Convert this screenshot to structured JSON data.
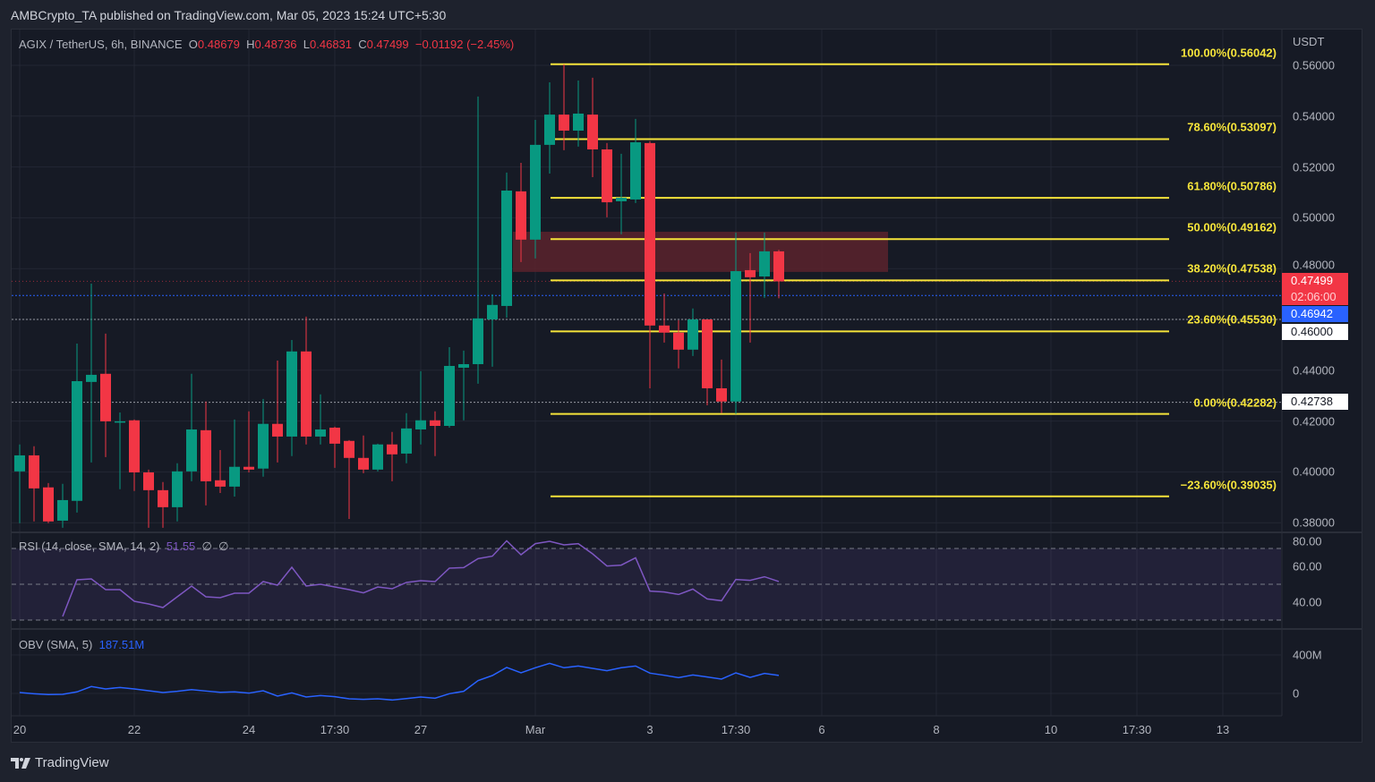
{
  "header": {
    "publish_line": "AMBCrypto_TA published on TradingView.com, Mar 05, 2023 15:24 UTC+5:30",
    "symbol_line": "AGIX / TetherUS, 6h, BINANCE",
    "o_label": "O",
    "o_value": "0.48679",
    "h_label": "H",
    "h_value": "0.48736",
    "l_label": "L",
    "l_value": "0.46831",
    "c_label": "C",
    "c_value": "0.47499",
    "change": "−0.01192 (−2.45%)"
  },
  "colors": {
    "up": "#089981",
    "down": "#f23645",
    "fib": "#f5e43a",
    "zone": "#5a232d",
    "rsi": "#7e57c2",
    "obv": "#2962ff",
    "bg": "#161a25"
  },
  "price_axis": {
    "currency": "USDT",
    "ticks": [
      "0.56000",
      "0.54000",
      "0.52000",
      "0.50000",
      "0.48000",
      "0.46000",
      "0.44000",
      "0.42000",
      "0.40000",
      "0.38000"
    ],
    "tick_values": [
      0.56,
      0.54,
      0.52,
      0.5,
      0.48,
      0.46,
      0.44,
      0.42,
      0.4,
      0.38
    ],
    "badges": [
      {
        "label": "0.47499",
        "sub": "02:06:00",
        "value": 0.47499,
        "kind": "last-price"
      },
      {
        "label": "0.46942",
        "value": 0.46942,
        "kind": "blue-line"
      },
      {
        "label": "0.46000",
        "value": 0.46,
        "kind": "white-line"
      },
      {
        "label": "0.42738",
        "value": 0.42738,
        "kind": "white-line"
      }
    ]
  },
  "time_axis": {
    "labels": [
      {
        "text": "20",
        "bar": 0
      },
      {
        "text": "22",
        "bar": 8
      },
      {
        "text": "24",
        "bar": 16
      },
      {
        "text": "17:30",
        "bar": 22
      },
      {
        "text": "27",
        "bar": 28
      },
      {
        "text": "Mar",
        "bar": 36
      },
      {
        "text": "3",
        "bar": 44
      },
      {
        "text": "17:30",
        "bar": 50
      },
      {
        "text": "6",
        "bar": 56
      },
      {
        "text": "8",
        "bar": 64
      },
      {
        "text": "10",
        "bar": 72
      },
      {
        "text": "17:30",
        "bar": 78
      },
      {
        "text": "13",
        "bar": 84
      }
    ]
  },
  "fib_levels": [
    {
      "label": "100.00%(0.56042)",
      "value": 0.56042
    },
    {
      "label": "78.60%(0.53097)",
      "value": 0.53097
    },
    {
      "label": "61.80%(0.50786)",
      "value": 0.50786
    },
    {
      "label": "50.00%(0.49162)",
      "value": 0.49162
    },
    {
      "label": "38.20%(0.47538)",
      "value": 0.47538
    },
    {
      "label": "23.60%(0.45530)",
      "value": 0.4553
    },
    {
      "label": "0.00%(0.42282)",
      "value": 0.42282
    },
    {
      "label": "−23.60%(0.39035)",
      "value": 0.39035
    }
  ],
  "zone": {
    "top": 0.4945,
    "bottom": 0.4787,
    "from_bar": 35,
    "to_bar": 60
  },
  "rsi": {
    "legend": "RSI (14, close, SMA, 14, 2)",
    "value": "51.55",
    "extra1": "∅",
    "extra2": "∅",
    "axis_labels": [
      "80.00",
      "60.00",
      "40.00"
    ],
    "axis_values": [
      80,
      60,
      40
    ],
    "upper_band": 70,
    "middle": 50,
    "lower_band": 30
  },
  "obv": {
    "legend": "OBV (SMA, 5)",
    "value": "187.51M",
    "axis_labels": [
      "400M",
      "0"
    ],
    "axis_values": [
      400,
      0
    ]
  },
  "branding": {
    "logo_text": "TradingView"
  },
  "chart_data": {
    "type": "candlestick",
    "title": "AGIX / TetherUS, 6h, BINANCE",
    "ylabel": "USDT",
    "ylim": [
      0.38,
      0.56
    ],
    "ohlc": [
      [
        0.4002,
        0.4108,
        0.3798,
        0.4065
      ],
      [
        0.4065,
        0.4101,
        0.3805,
        0.3935
      ],
      [
        0.3939,
        0.3956,
        0.3798,
        0.3805
      ],
      [
        0.3808,
        0.3953,
        0.378,
        0.3889
      ],
      [
        0.3886,
        0.4505,
        0.384,
        0.4357
      ],
      [
        0.4354,
        0.4741,
        0.4037,
        0.4382
      ],
      [
        0.4386,
        0.4544,
        0.4058,
        0.4199
      ],
      [
        0.4196,
        0.4234,
        0.3932,
        0.4199
      ],
      [
        0.4203,
        0.4206,
        0.3925,
        0.3998
      ],
      [
        0.3998,
        0.4009,
        0.378,
        0.3928
      ],
      [
        0.3928,
        0.396,
        0.378,
        0.3861
      ],
      [
        0.3861,
        0.4034,
        0.3805,
        0.4002
      ],
      [
        0.4002,
        0.4386,
        0.3963,
        0.4167
      ],
      [
        0.4164,
        0.4277,
        0.3868,
        0.3963
      ],
      [
        0.3967,
        0.4086,
        0.3917,
        0.3942
      ],
      [
        0.3942,
        0.4206,
        0.3903,
        0.402
      ],
      [
        0.402,
        0.4238,
        0.3998,
        0.4009
      ],
      [
        0.4013,
        0.4287,
        0.3981,
        0.4189
      ],
      [
        0.4189,
        0.4438,
        0.4037,
        0.4139
      ],
      [
        0.4139,
        0.4519,
        0.4062,
        0.4474
      ],
      [
        0.4474,
        0.4611,
        0.4108,
        0.4139
      ],
      [
        0.4139,
        0.4305,
        0.4108,
        0.4167
      ],
      [
        0.4174,
        0.4178,
        0.4016,
        0.4111
      ],
      [
        0.4122,
        0.4125,
        0.3815,
        0.4055
      ],
      [
        0.4055,
        0.4143,
        0.3995,
        0.4009
      ],
      [
        0.4009,
        0.4111,
        0.4002,
        0.4108
      ],
      [
        0.4108,
        0.4157,
        0.3963,
        0.4069
      ],
      [
        0.4072,
        0.4231,
        0.4034,
        0.4171
      ],
      [
        0.4167,
        0.4396,
        0.4108,
        0.4203
      ],
      [
        0.4203,
        0.4238,
        0.4062,
        0.4181
      ],
      [
        0.4181,
        0.4491,
        0.4174,
        0.4417
      ],
      [
        0.441,
        0.4477,
        0.4203,
        0.4424
      ],
      [
        0.4424,
        0.5477,
        0.4347,
        0.4604
      ],
      [
        0.46,
        0.4699,
        0.4414,
        0.4657
      ],
      [
        0.4653,
        0.5178,
        0.4607,
        0.5107
      ],
      [
        0.5104,
        0.5216,
        0.4826,
        0.4914
      ],
      [
        0.4914,
        0.5385,
        0.484,
        0.5287
      ],
      [
        0.5287,
        0.5533,
        0.5174,
        0.5406
      ],
      [
        0.5406,
        0.5604,
        0.5266,
        0.5343
      ],
      [
        0.5343,
        0.554,
        0.528,
        0.541
      ],
      [
        0.5406,
        0.5551,
        0.516,
        0.5269
      ],
      [
        0.5269,
        0.5294,
        0.5002,
        0.5061
      ],
      [
        0.5065,
        0.5252,
        0.4935,
        0.5079
      ],
      [
        0.5072,
        0.5389,
        0.5058,
        0.5297
      ],
      [
        0.5294,
        0.5301,
        0.4329,
        0.4576
      ],
      [
        0.4576,
        0.4702,
        0.4509,
        0.4548
      ],
      [
        0.4548,
        0.4597,
        0.4407,
        0.4481
      ],
      [
        0.4481,
        0.4643,
        0.4456,
        0.46
      ],
      [
        0.46,
        0.46,
        0.4262,
        0.4329
      ],
      [
        0.4329,
        0.4442,
        0.4231,
        0.4277
      ],
      [
        0.4277,
        0.4942,
        0.4228,
        0.479
      ],
      [
        0.4794,
        0.4861,
        0.4509,
        0.4766
      ],
      [
        0.4769,
        0.4942,
        0.4685,
        0.4868
      ],
      [
        0.48679,
        0.48736,
        0.46831,
        0.47499
      ]
    ],
    "rsi_start_bar": 3,
    "rsi": [
      32,
      52.5,
      53,
      47,
      47,
      40.5,
      39,
      37,
      43,
      49,
      43,
      42.5,
      45,
      45,
      51.5,
      49.5,
      59.5,
      49,
      50,
      48.5,
      47,
      45.2,
      48.5,
      47.5,
      51,
      52,
      51.5,
      59,
      59.3,
      64.3,
      65.7,
      74.3,
      66.5,
      72.7,
      74,
      72,
      72.7,
      67,
      60.2,
      60.7,
      64.8,
      46.2,
      45.7,
      44.3,
      47.3,
      41.8,
      40.8,
      52.7,
      52.2,
      54.2,
      51.55
    ],
    "obv_millions": [
      9,
      -3,
      -12,
      -9,
      16,
      72,
      47,
      62,
      47,
      28,
      9,
      22,
      40,
      25,
      12,
      16,
      3,
      28,
      -28,
      6,
      -37,
      -22,
      -34,
      -56,
      -62,
      -56,
      -68,
      -53,
      -37,
      -50,
      -3,
      22,
      133,
      186,
      270,
      214,
      267,
      313,
      267,
      285,
      260,
      236,
      267,
      285,
      211,
      189,
      164,
      192,
      171,
      149,
      214,
      167,
      208,
      187.51
    ]
  }
}
